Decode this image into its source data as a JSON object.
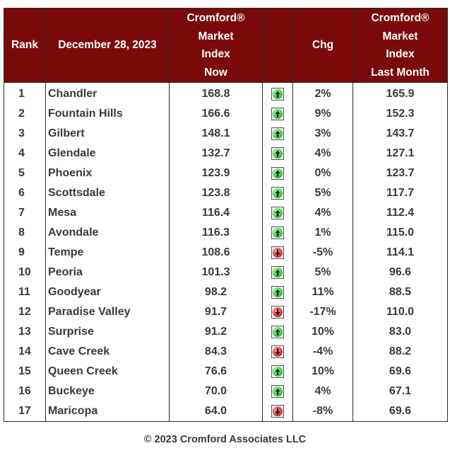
{
  "header": {
    "rank": "Rank",
    "date": "December 28, 2023",
    "now": [
      "Cromford®",
      "Market",
      "Index",
      "Now"
    ],
    "chg": "Chg",
    "last": [
      "Cromford®",
      "Market",
      "Index",
      "Last Month"
    ]
  },
  "rows": [
    {
      "rank": "1",
      "city": "Chandler",
      "now": "168.8",
      "dir": "up",
      "chg": "2%",
      "last": "165.9"
    },
    {
      "rank": "2",
      "city": "Fountain Hills",
      "now": "166.6",
      "dir": "up",
      "chg": "9%",
      "last": "152.3"
    },
    {
      "rank": "3",
      "city": "Gilbert",
      "now": "148.1",
      "dir": "up",
      "chg": "3%",
      "last": "143.7"
    },
    {
      "rank": "4",
      "city": "Glendale",
      "now": "132.7",
      "dir": "up",
      "chg": "4%",
      "last": "127.1"
    },
    {
      "rank": "5",
      "city": "Phoenix",
      "now": "123.9",
      "dir": "up",
      "chg": "0%",
      "last": "123.7"
    },
    {
      "rank": "6",
      "city": "Scottsdale",
      "now": "123.8",
      "dir": "up",
      "chg": "5%",
      "last": "117.7"
    },
    {
      "rank": "7",
      "city": "Mesa",
      "now": "116.4",
      "dir": "up",
      "chg": "4%",
      "last": "112.4"
    },
    {
      "rank": "8",
      "city": "Avondale",
      "now": "116.3",
      "dir": "up",
      "chg": "1%",
      "last": "115.0"
    },
    {
      "rank": "9",
      "city": "Tempe",
      "now": "108.6",
      "dir": "down",
      "chg": "-5%",
      "last": "114.1"
    },
    {
      "rank": "10",
      "city": "Peoria",
      "now": "101.3",
      "dir": "up",
      "chg": "5%",
      "last": "96.6"
    },
    {
      "rank": "11",
      "city": "Goodyear",
      "now": "98.2",
      "dir": "up",
      "chg": "11%",
      "last": "88.5"
    },
    {
      "rank": "12",
      "city": "Paradise Valley",
      "now": "91.7",
      "dir": "down",
      "chg": "-17%",
      "last": "110.0"
    },
    {
      "rank": "13",
      "city": "Surprise",
      "now": "91.2",
      "dir": "up",
      "chg": "10%",
      "last": "83.0"
    },
    {
      "rank": "14",
      "city": "Cave Creek",
      "now": "84.3",
      "dir": "down",
      "chg": "-4%",
      "last": "88.2"
    },
    {
      "rank": "15",
      "city": "Queen Creek",
      "now": "76.6",
      "dir": "up",
      "chg": "10%",
      "last": "69.6"
    },
    {
      "rank": "16",
      "city": "Buckeye",
      "now": "70.0",
      "dir": "up",
      "chg": "4%",
      "last": "67.1"
    },
    {
      "rank": "17",
      "city": "Maricopa",
      "now": "64.0",
      "dir": "down",
      "chg": "-8%",
      "last": "69.6"
    }
  ],
  "icons": {
    "up": "green-up-arrow-icon",
    "down": "red-down-arrow-icon"
  },
  "colors": {
    "header_bg": "#7a0a0a",
    "header_text": "#ffffff",
    "up": "#3fd03f",
    "down": "#e23a3a"
  },
  "footer": "© 2023 Cromford Associates LLC"
}
